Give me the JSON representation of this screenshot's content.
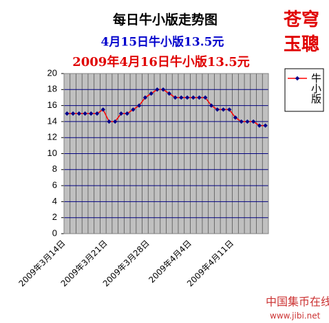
{
  "chart_data": {
    "type": "line",
    "title": "每日牛小版走势图",
    "subtitle": "4月15日牛小版13.5元",
    "subtitle2": "2009年4月16日牛小版13.5元",
    "annotations": [
      "苍穹",
      "玉聰"
    ],
    "categories": [
      "2009年3月14日",
      null,
      null,
      null,
      null,
      null,
      null,
      "2009年3月21日",
      null,
      null,
      null,
      null,
      null,
      null,
      "2009年3月28日",
      null,
      null,
      null,
      null,
      null,
      null,
      "2009年4月4日",
      null,
      null,
      null,
      null,
      null,
      null,
      "2009年4月11日",
      null,
      null,
      null,
      null,
      null
    ],
    "series": [
      {
        "name": "牛小版",
        "color": "#ff0000",
        "marker_color": "#00008b",
        "values": [
          15,
          15,
          15,
          15,
          15,
          15,
          15.5,
          14,
          14,
          15,
          15,
          15.5,
          16,
          17,
          17.5,
          18,
          18,
          17.5,
          17,
          17,
          17,
          17,
          17,
          17,
          16,
          15.5,
          15.5,
          15.5,
          14.5,
          14,
          14,
          14,
          13.5,
          13.5
        ]
      }
    ],
    "ylim": [
      0,
      20
    ],
    "yticks": [
      0,
      2,
      4,
      6,
      8,
      10,
      12,
      14,
      16,
      18,
      20
    ],
    "grid": true,
    "legend": "right"
  },
  "watermark": {
    "name": "中国集币在线",
    "url": "www.jibi.net"
  }
}
